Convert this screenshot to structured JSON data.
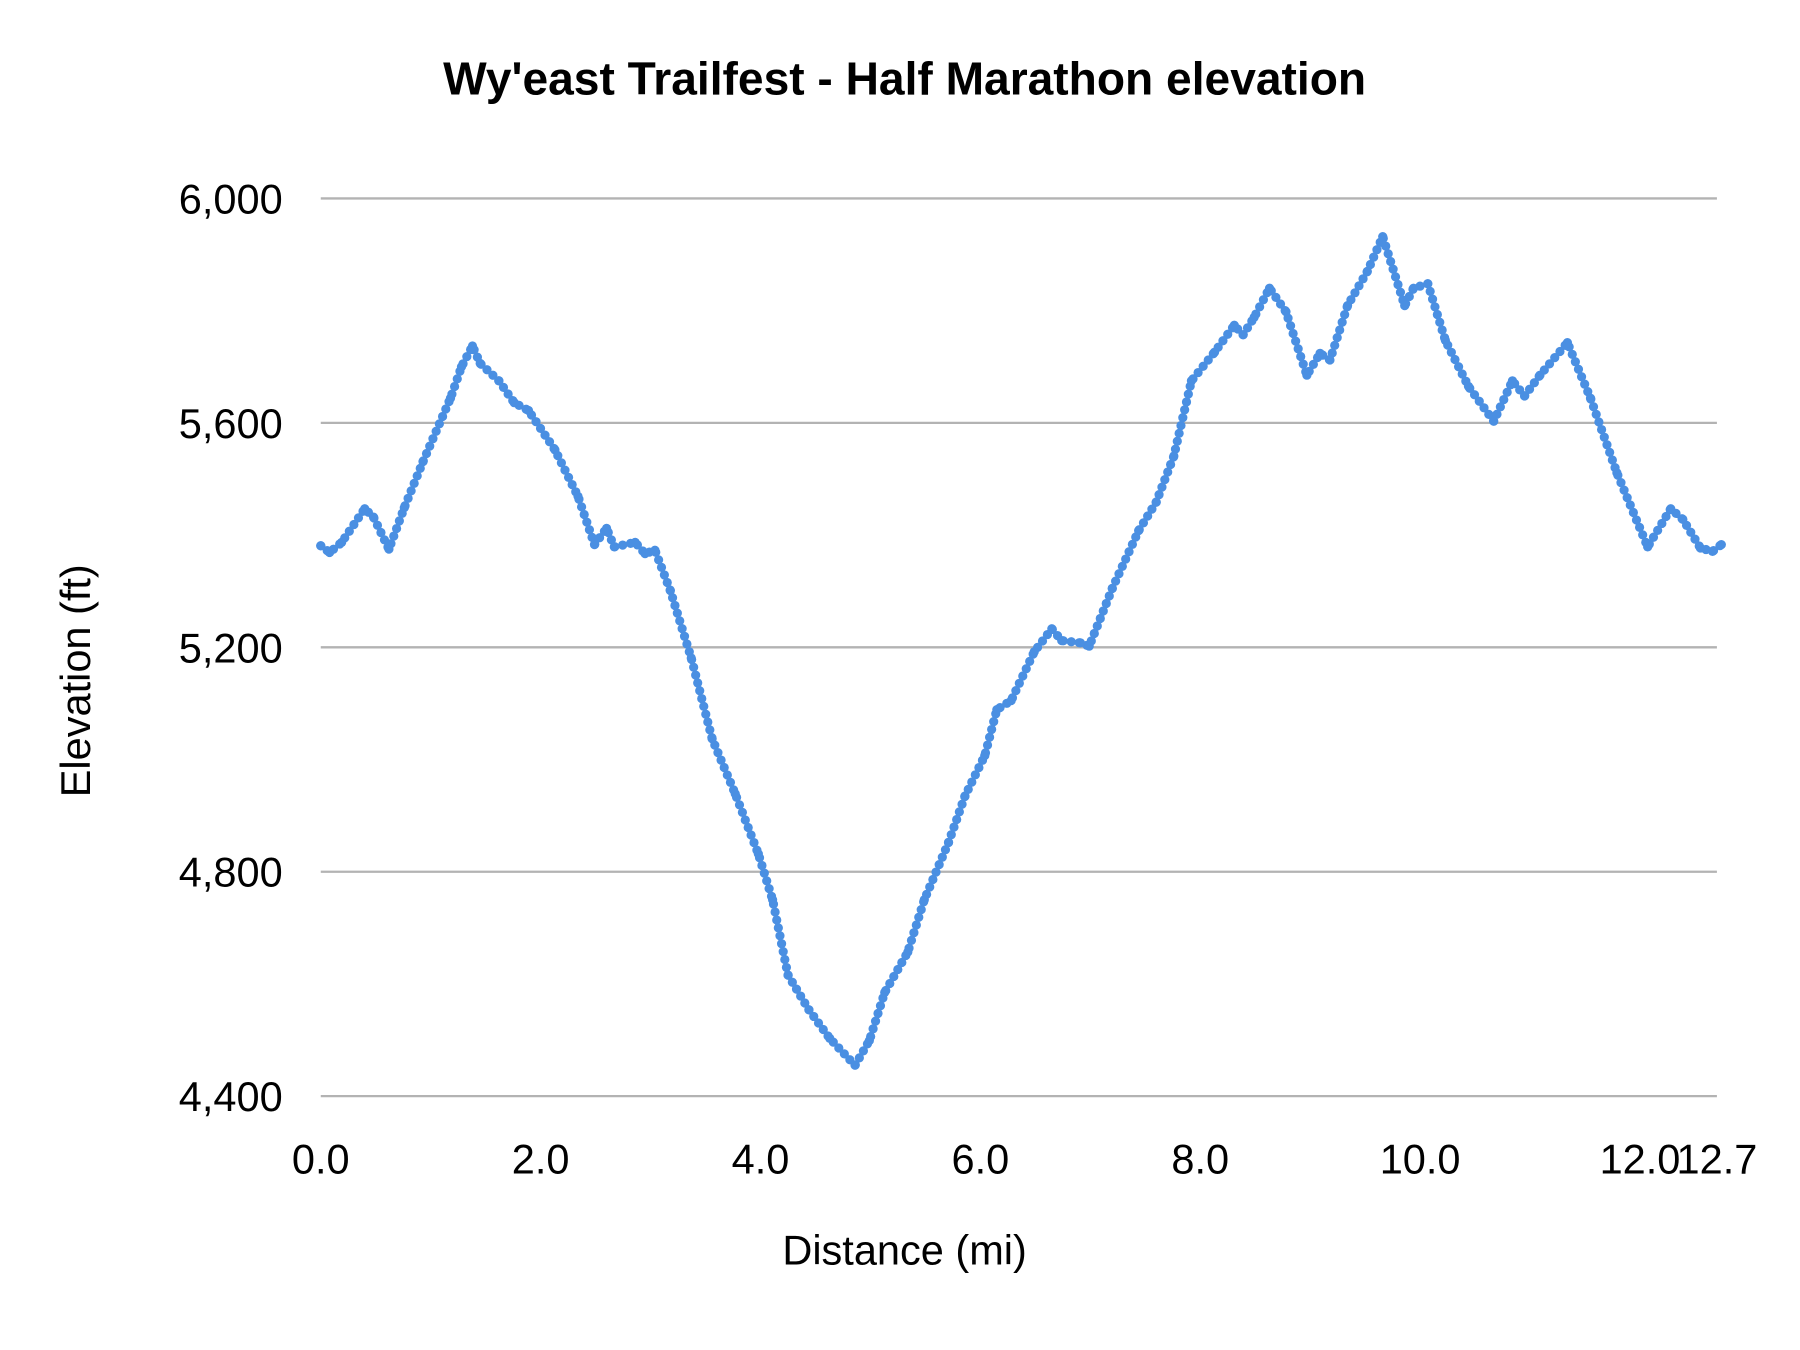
{
  "chart_data": {
    "type": "line",
    "title": "Wy'east Trailfest - Half Marathon elevation",
    "xlabel": "Distance (mi)",
    "ylabel": "Elevation (ft)",
    "xlim": [
      0,
      12.7
    ],
    "ylim": [
      4400,
      6000
    ],
    "x_ticks": [
      "0.0",
      "2.0",
      "4.0",
      "6.0",
      "8.0",
      "10.0",
      "12.0",
      "12.7"
    ],
    "x_tick_values": [
      0,
      2,
      4,
      6,
      8,
      10,
      12,
      12.7
    ],
    "y_ticks": [
      "4,400",
      "4,800",
      "5,200",
      "5,600",
      "6,000"
    ],
    "y_tick_values": [
      4400,
      4800,
      5200,
      5600,
      6000
    ],
    "grid": "horizontal",
    "legend": "none",
    "marker": "dots",
    "color": "#4a8fe2",
    "x": [
      0.0,
      0.08,
      0.19,
      0.4,
      0.48,
      0.62,
      0.76,
      0.93,
      1.18,
      1.28,
      1.38,
      1.45,
      1.62,
      1.76,
      1.89,
      2.13,
      2.34,
      2.49,
      2.6,
      2.67,
      2.86,
      2.95,
      3.04,
      3.18,
      3.37,
      3.56,
      3.77,
      3.98,
      4.11,
      4.25,
      4.44,
      4.63,
      4.86,
      4.99,
      5.13,
      5.34,
      5.49,
      5.71,
      5.86,
      6.04,
      6.15,
      6.28,
      6.49,
      6.65,
      6.74,
      6.91,
      6.99,
      7.2,
      7.44,
      7.6,
      7.76,
      7.92,
      8.13,
      8.31,
      8.39,
      8.49,
      8.63,
      8.78,
      8.97,
      9.09,
      9.18,
      9.34,
      9.52,
      9.66,
      9.86,
      9.94,
      10.07,
      10.23,
      10.44,
      10.67,
      10.84,
      10.95,
      11.09,
      11.34,
      11.55,
      11.79,
      12.07,
      12.28,
      12.39,
      12.55,
      12.66,
      12.74
    ],
    "y": [
      5381,
      5369,
      5387,
      5447,
      5432,
      5375,
      5449,
      5531,
      5644,
      5700,
      5737,
      5706,
      5675,
      5636,
      5622,
      5552,
      5469,
      5383,
      5412,
      5379,
      5387,
      5367,
      5373,
      5301,
      5181,
      5037,
      4939,
      4832,
      4750,
      4616,
      4554,
      4503,
      4455,
      4499,
      4585,
      4657,
      4750,
      4852,
      4935,
      5007,
      5089,
      5105,
      5192,
      5233,
      5212,
      5208,
      5202,
      5305,
      5408,
      5459,
      5541,
      5675,
      5726,
      5774,
      5757,
      5788,
      5840,
      5798,
      5685,
      5724,
      5712,
      5809,
      5870,
      5932,
      5809,
      5840,
      5848,
      5747,
      5665,
      5603,
      5675,
      5648,
      5685,
      5743,
      5644,
      5511,
      5379,
      5447,
      5428,
      5377,
      5371,
      5383
    ]
  }
}
